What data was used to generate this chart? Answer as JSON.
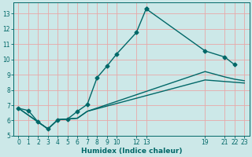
{
  "xlabel": "Humidex (Indice chaleur)",
  "bg_color": "#cce8e8",
  "grid_color": "#e8a8a8",
  "line_color": "#006868",
  "xlim": [
    -0.5,
    23.5
  ],
  "ylim": [
    5.0,
    13.7
  ],
  "xticks": [
    0,
    1,
    2,
    3,
    4,
    5,
    6,
    7,
    8,
    9,
    10,
    12,
    13,
    19,
    21,
    22,
    23
  ],
  "yticks": [
    5,
    6,
    7,
    8,
    9,
    10,
    11,
    12,
    13
  ],
  "line1_x": [
    0,
    1,
    2,
    3,
    4,
    5,
    6,
    7,
    8,
    9,
    10,
    12,
    13
  ],
  "line1_y": [
    6.8,
    6.65,
    5.9,
    5.45,
    6.05,
    6.1,
    6.6,
    7.05,
    8.8,
    9.55,
    10.35,
    11.75,
    13.3
  ],
  "line2_x": [
    13,
    19,
    21,
    22
  ],
  "line2_y": [
    13.3,
    10.55,
    10.15,
    9.65
  ],
  "line3_x": [
    0,
    2,
    3,
    4,
    5,
    6,
    7,
    19,
    21,
    22,
    23
  ],
  "line3_y": [
    6.8,
    5.9,
    5.45,
    6.05,
    6.1,
    6.15,
    6.6,
    8.65,
    8.55,
    8.5,
    8.45
  ],
  "line4_x": [
    0,
    2,
    3,
    4,
    5,
    6,
    7,
    19,
    21,
    22,
    23
  ],
  "line4_y": [
    6.8,
    5.9,
    5.45,
    6.05,
    6.1,
    6.15,
    6.6,
    9.2,
    8.85,
    8.7,
    8.6
  ],
  "line_width": 1.0,
  "marker": "D",
  "marker_size": 2.5
}
